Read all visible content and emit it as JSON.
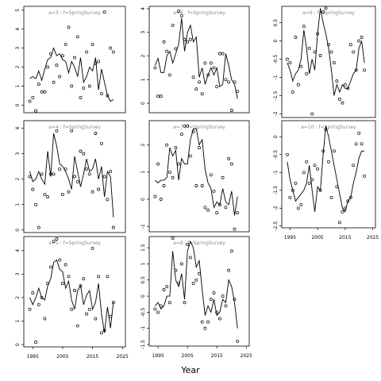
{
  "figure": {
    "xlabel": "Year"
  },
  "chart_data": [
    {
      "title": "a=3 : f=SpringSurvey",
      "type": "scatter+line",
      "xlim": [
        1992,
        2026
      ],
      "ylim": [
        -0.4,
        5.2
      ],
      "yticks": [
        0,
        1,
        2,
        3,
        4,
        5
      ],
      "xticks": [],
      "years": [
        1994,
        1995,
        1996,
        1997,
        1998,
        1999,
        2000,
        2001,
        2002,
        2003,
        2004,
        2005,
        2006,
        2007,
        2008,
        2009,
        2010,
        2011,
        2012,
        2013,
        2014,
        2015,
        2016,
        2017,
        2018,
        2019,
        2020,
        2021,
        2022
      ],
      "line": [
        1.4,
        1.5,
        1.4,
        1.8,
        1.3,
        1.9,
        2.4,
        2.5,
        3.0,
        2.6,
        2.7,
        2.4,
        2.3,
        1.7,
        2.3,
        2.0,
        1.5,
        2.5,
        1.2,
        1.5,
        2.0,
        1.8,
        2.5,
        0.8,
        1.9,
        1.2,
        0.5,
        0.2,
        0.3
      ],
      "points": [
        0.2,
        0.4,
        -0.3,
        1.1,
        0.7,
        0.7,
        2.0,
        2.7,
        1.2,
        2.1,
        1.5,
        2.6,
        3.2,
        4.1,
        1.0,
        2.5,
        3.6,
        0.4,
        0.9,
        2.8,
        1.0,
        3.2,
        2.2,
        2.3,
        0.6,
        4.9,
        0.5,
        3.0,
        2.8
      ]
    },
    {
      "title": "a=6 : f=SpringSurvey",
      "type": "scatter+line",
      "xlim": [
        1992,
        2026
      ],
      "ylim": [
        -0.4,
        4.1
      ],
      "yticks": [
        0,
        1,
        2,
        3,
        4
      ],
      "xticks": [],
      "years": [
        1994,
        1995,
        1996,
        1997,
        1998,
        1999,
        2000,
        2001,
        2002,
        2003,
        2004,
        2005,
        2006,
        2007,
        2008,
        2009,
        2010,
        2011,
        2012,
        2013,
        2014,
        2015,
        2016,
        2017,
        2018,
        2019,
        2020,
        2021,
        2022
      ],
      "line": [
        1.6,
        1.9,
        1.3,
        1.3,
        2.0,
        2.2,
        1.7,
        2.1,
        2.5,
        3.6,
        2.2,
        3.0,
        3.3,
        2.6,
        2.8,
        1.1,
        1.5,
        0.8,
        1.2,
        1.5,
        1.2,
        1.5,
        0.7,
        0.8,
        2.1,
        1.6,
        1.0,
        0.8,
        0.2
      ],
      "points": [
        1.5,
        0.3,
        0.3,
        2.6,
        2.2,
        1.2,
        3.3,
        2.3,
        3.9,
        3.7,
        2.7,
        2.6,
        2.7,
        1.1,
        0.6,
        0.9,
        0.4,
        1.7,
        1.2,
        1.7,
        1.5,
        0.7,
        2.1,
        2.1,
        1.0,
        0.9,
        -0.3,
        0.9,
        0.5
      ]
    },
    {
      "title": "a=9 : f=SpringSurvey",
      "type": "scatter+line",
      "xlim": [
        1992,
        2026
      ],
      "ylim": [
        -2.1,
        0.95
      ],
      "yticks": [
        -2.0,
        -1.5,
        -1.0,
        -0.5,
        0.0,
        0.5
      ],
      "xticks": [],
      "years": [
        1994,
        1995,
        1996,
        1997,
        1998,
        1999,
        2000,
        2001,
        2002,
        2003,
        2004,
        2005,
        2006,
        2007,
        2008,
        2009,
        2010,
        2011,
        2012,
        2013,
        2014,
        2015,
        2016,
        2017,
        2018,
        2019,
        2020,
        2021,
        2022
      ],
      "line": [
        -0.6,
        -0.8,
        -1.1,
        -0.9,
        -0.8,
        -0.5,
        0.3,
        -0.2,
        -0.9,
        -0.5,
        -0.8,
        0.2,
        0.9,
        0.5,
        0.2,
        -0.2,
        -0.8,
        -1.5,
        -1.2,
        -1.4,
        -1.2,
        -1.3,
        -1.3,
        -1.1,
        -0.9,
        -0.8,
        -0.2,
        0.0,
        -0.6
      ],
      "points": [
        -0.5,
        -0.6,
        -1.4,
        0.1,
        -1.2,
        -0.7,
        0.4,
        -0.9,
        -0.2,
        -2.0,
        -0.3,
        0.2,
        -0.4,
        0.8,
        0.9,
        -0.1,
        -0.3,
        -0.6,
        -1.1,
        -1.6,
        -1.7,
        -1.2,
        -1.3,
        -0.1,
        -0.3,
        -0.8,
        0.0,
        0.1,
        -0.8
      ]
    },
    {
      "title": "a=4 : f=SpringSurvey",
      "type": "scatter+line",
      "xlim": [
        1992,
        2026
      ],
      "ylim": [
        -0.1,
        4.3
      ],
      "yticks": [
        0,
        1,
        2,
        3,
        4
      ],
      "xticks": [],
      "years": [
        1994,
        1995,
        1996,
        1997,
        1998,
        1999,
        2000,
        2001,
        2002,
        2003,
        2004,
        2005,
        2006,
        2007,
        2008,
        2009,
        2010,
        2011,
        2012,
        2013,
        2014,
        2015,
        2016,
        2017,
        2018,
        2019,
        2020,
        2021,
        2022
      ],
      "line": [
        2.3,
        1.9,
        2.0,
        2.3,
        2.0,
        1.8,
        3.1,
        2.1,
        3.8,
        3.3,
        2.6,
        2.5,
        2.3,
        2.0,
        1.6,
        2.9,
        2.3,
        1.7,
        2.2,
        2.8,
        2.3,
        2.4,
        2.8,
        2.0,
        2.5,
        1.3,
        2.3,
        2.1,
        0.5
      ],
      "points": [
        2.1,
        1.6,
        1.0,
        0.1,
        2.2,
        1.4,
        1.3,
        2.2,
        2.2,
        3.9,
        2.4,
        1.4,
        2.4,
        1.5,
        3.9,
        2.1,
        1.9,
        3.1,
        3.0,
        2.4,
        2.2,
        1.5,
        3.8,
        1.6,
        3.4,
        2.1,
        1.2,
        2.3,
        0.1
      ]
    },
    {
      "title": "a=7 : f=SpringSurvey",
      "type": "scatter+line",
      "xlim": [
        1992,
        2026
      ],
      "ylim": [
        -1.2,
        2.9
      ],
      "yticks": [
        -1,
        0,
        1,
        2
      ],
      "xticks": [],
      "years": [
        1994,
        1995,
        1996,
        1997,
        1998,
        1999,
        2000,
        2001,
        2002,
        2003,
        2004,
        2005,
        2006,
        2007,
        2008,
        2009,
        2010,
        2011,
        2012,
        2013,
        2014,
        2015,
        2016,
        2017,
        2018,
        2019,
        2020,
        2021,
        2022
      ],
      "line": [
        0.7,
        0.6,
        0.7,
        0.7,
        0.8,
        1.9,
        1.6,
        1.8,
        0.7,
        1.5,
        1.3,
        1.3,
        2.2,
        2.6,
        2.6,
        2.0,
        2.2,
        1.1,
        0.6,
        0.4,
        -0.3,
        -0.1,
        -0.2,
        0.4,
        -0.1,
        -0.2,
        0.3,
        -0.6,
        0.1
      ],
      "points": [
        0.1,
        1.3,
        0.0,
        0.5,
        2.0,
        1.0,
        0.8,
        1.9,
        1.3,
        2.4,
        2.7,
        2.7,
        1.6,
        2.5,
        0.5,
        1.9,
        0.5,
        -0.3,
        -0.4,
        0.9,
        0.3,
        -0.5,
        -0.2,
        0.8,
        -0.3,
        1.5,
        1.3,
        -1.1,
        -0.5
      ]
    },
    {
      "title": "a=10 : f=SpringSurvey",
      "type": "scatter+line",
      "xlim": [
        1992,
        2026
      ],
      "ylim": [
        -2.55,
        0.45
      ],
      "yticks": [
        -2.5,
        -2.0,
        -1.5,
        -1.0,
        -0.5,
        0.0
      ],
      "xticks": [
        1995,
        2005,
        2015,
        2025
      ],
      "years": [
        1994,
        1995,
        1996,
        1997,
        1998,
        1999,
        2000,
        2001,
        2002,
        2003,
        2004,
        2005,
        2006,
        2007,
        2008,
        2009,
        2010,
        2011,
        2012,
        2013,
        2014,
        2015,
        2016,
        2017,
        2018,
        2019,
        2020,
        2021,
        2022
      ],
      "line": [
        -0.7,
        -1.2,
        -1.5,
        -1.8,
        -1.7,
        -1.6,
        -1.5,
        -1.3,
        -0.8,
        -1.5,
        -2.1,
        -1.4,
        -1.5,
        -0.5,
        0.3,
        0.0,
        -0.4,
        -0.8,
        -1.2,
        -1.6,
        -2.0,
        -2.1,
        -1.8,
        -1.7,
        -1.3,
        -1.0,
        -0.6,
        -0.4,
        -0.4
      ],
      "points": [
        -0.5,
        -1.7,
        -1.5,
        -1.3,
        -2.0,
        -1.9,
        -1.0,
        -0.7,
        -1.3,
        -1.2,
        -0.8,
        -0.9,
        -1.5,
        -0.4,
        0.2,
        -0.7,
        -1.7,
        -0.4,
        -1.4,
        -2.4,
        -2.1,
        -2.0,
        -1.8,
        -1.7,
        -0.8,
        -0.2,
        0.1,
        -0.2,
        -1.1
      ]
    },
    {
      "title": "a=5 : f=SpringSurvey",
      "type": "scatter+line",
      "xlim": [
        1992,
        2026
      ],
      "ylim": [
        -0.1,
        4.6
      ],
      "yticks": [
        0,
        1,
        2,
        3,
        4
      ],
      "xticks": [
        1995,
        2005,
        2015,
        2025
      ],
      "years": [
        1994,
        1995,
        1996,
        1997,
        1998,
        1999,
        2000,
        2001,
        2002,
        2003,
        2004,
        2005,
        2006,
        2007,
        2008,
        2009,
        2010,
        2011,
        2012,
        2013,
        2014,
        2015,
        2016,
        2017,
        2018,
        2019,
        2020,
        2021,
        2022
      ],
      "line": [
        2.0,
        1.7,
        2.0,
        2.4,
        2.0,
        1.9,
        2.5,
        2.8,
        3.5,
        3.6,
        3.2,
        3.1,
        2.4,
        2.7,
        1.9,
        1.5,
        2.3,
        2.5,
        1.7,
        2.1,
        2.3,
        1.5,
        1.8,
        2.6,
        1.3,
        0.5,
        1.6,
        0.7,
        1.8
      ],
      "points": [
        1.5,
        2.2,
        0.1,
        1.7,
        2.0,
        1.1,
        2.6,
        3.3,
        4.4,
        4.5,
        3.6,
        2.6,
        3.4,
        2.9,
        1.5,
        2.3,
        0.8,
        2.5,
        2.8,
        1.3,
        1.5,
        4.1,
        1.1,
        2.9,
        0.5,
        0.6,
        2.9,
        1.2,
        1.8
      ]
    },
    {
      "title": "a=8 : f=SpringSurvey",
      "type": "scatter+line",
      "xlim": [
        1992,
        2026
      ],
      "ylim": [
        -1.55,
        1.85
      ],
      "yticks": [
        -1.5,
        -1.0,
        -0.5,
        0.0,
        0.5,
        1.0,
        1.5
      ],
      "xticks": [
        1995,
        2005,
        2015,
        2025
      ],
      "years": [
        1994,
        1995,
        1996,
        1997,
        1998,
        1999,
        2000,
        2001,
        2002,
        2003,
        2004,
        2005,
        2006,
        2007,
        2008,
        2009,
        2010,
        2011,
        2012,
        2013,
        2014,
        2015,
        2016,
        2017,
        2018,
        2019,
        2020,
        2021,
        2022
      ],
      "line": [
        -0.3,
        -0.2,
        -0.4,
        -0.3,
        0.0,
        0.0,
        1.4,
        0.5,
        0.3,
        0.7,
        -0.1,
        1.4,
        1.7,
        1.5,
        0.9,
        1.1,
        0.2,
        -0.6,
        -0.3,
        -0.5,
        -0.1,
        -0.6,
        -0.5,
        -0.1,
        -0.2,
        0.5,
        0.3,
        -0.2,
        -1.0
      ],
      "points": [
        -0.4,
        -0.5,
        -0.3,
        0.2,
        0.3,
        -0.2,
        1.8,
        0.8,
        0.4,
        1.0,
        -0.2,
        1.6,
        1.2,
        0.4,
        0.5,
        0.7,
        -0.8,
        -1.0,
        -0.8,
        -0.1,
        0.1,
        -0.5,
        -0.7,
        0.0,
        -0.3,
        0.8,
        1.4,
        -0.1,
        -1.4
      ]
    }
  ]
}
